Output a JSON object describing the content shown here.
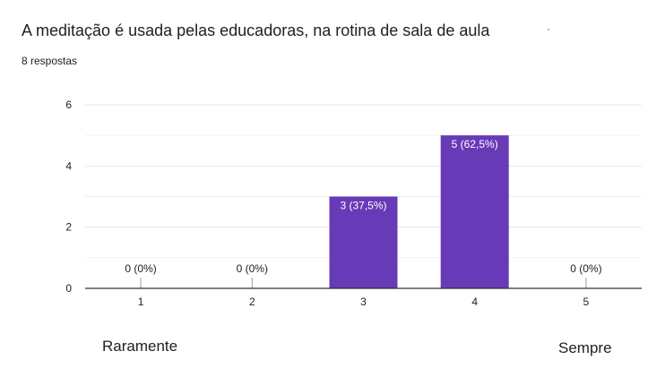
{
  "form": {
    "question": "A meditação é usada pelas educadoras, na rotina de sala de aula",
    "responses": "8 respostas",
    "scale_low_label": "Raramente",
    "scale_high_label": "Sempre"
  },
  "colors": {
    "bar": "#673ab7",
    "grid": "#e8e8e8",
    "axis": "#333333",
    "text": "#202124"
  },
  "chart_data": {
    "type": "bar",
    "categories": [
      "1",
      "2",
      "3",
      "4",
      "5"
    ],
    "values": [
      0,
      0,
      3,
      5,
      0
    ],
    "data_labels": [
      "0 (0%)",
      "0 (0%)",
      "3 (37,5%)",
      "5 (62,5%)",
      "0 (0%)"
    ],
    "yticks": [
      "0",
      "2",
      "4",
      "6"
    ],
    "ylim": [
      0,
      6
    ],
    "grid": true,
    "legend": "none"
  }
}
